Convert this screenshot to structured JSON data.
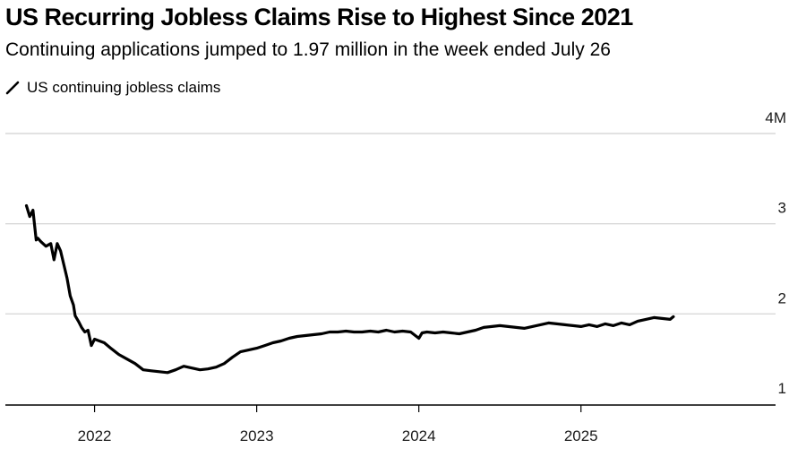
{
  "chart_data": {
    "type": "line",
    "title": "US Recurring Jobless Claims Rise to Highest Since 2021",
    "subtitle": "Continuing applications jumped to 1.97 million in the week ended July 26",
    "xlabel": "",
    "ylabel": "",
    "legend_position": "top-left",
    "grid": true,
    "line_color": "#000000",
    "grid_color": "#d9d9d9",
    "xlim": [
      2021.45,
      2026.2
    ],
    "ylim": [
      1,
      4
    ],
    "y_ticks": [
      {
        "value": 4,
        "label": "4M"
      },
      {
        "value": 3,
        "label": "3"
      },
      {
        "value": 2,
        "label": "2"
      },
      {
        "value": 1,
        "label": "1"
      }
    ],
    "x_ticks": [
      {
        "value": 2022,
        "label": "2022"
      },
      {
        "value": 2023,
        "label": "2023"
      },
      {
        "value": 2024,
        "label": "2024"
      },
      {
        "value": 2025,
        "label": "2025"
      }
    ],
    "series": [
      {
        "name": "US continuing jobless claims",
        "x": [
          2021.58,
          2021.6,
          2021.62,
          2021.64,
          2021.65,
          2021.67,
          2021.7,
          2021.73,
          2021.75,
          2021.77,
          2021.79,
          2021.81,
          2021.83,
          2021.85,
          2021.87,
          2021.88,
          2021.9,
          2021.92,
          2021.94,
          2021.96,
          2021.98,
          2022.0,
          2022.03,
          2022.06,
          2022.1,
          2022.15,
          2022.2,
          2022.25,
          2022.3,
          2022.35,
          2022.4,
          2022.45,
          2022.5,
          2022.55,
          2022.6,
          2022.65,
          2022.7,
          2022.75,
          2022.8,
          2022.85,
          2022.9,
          2022.95,
          2023.0,
          2023.05,
          2023.1,
          2023.15,
          2023.2,
          2023.25,
          2023.3,
          2023.35,
          2023.4,
          2023.45,
          2023.5,
          2023.55,
          2023.6,
          2023.65,
          2023.7,
          2023.75,
          2023.8,
          2023.85,
          2023.9,
          2023.95,
          2024.0,
          2024.02,
          2024.05,
          2024.1,
          2024.15,
          2024.2,
          2024.25,
          2024.3,
          2024.35,
          2024.4,
          2024.45,
          2024.5,
          2024.55,
          2024.6,
          2024.65,
          2024.7,
          2024.75,
          2024.8,
          2024.85,
          2024.9,
          2024.95,
          2025.0,
          2025.05,
          2025.1,
          2025.15,
          2025.2,
          2025.25,
          2025.3,
          2025.35,
          2025.4,
          2025.45,
          2025.5,
          2025.55,
          2025.57
        ],
        "values": [
          3.2,
          3.08,
          3.15,
          2.82,
          2.84,
          2.8,
          2.75,
          2.78,
          2.6,
          2.78,
          2.7,
          2.55,
          2.4,
          2.2,
          2.1,
          1.98,
          1.92,
          1.85,
          1.8,
          1.82,
          1.65,
          1.72,
          1.7,
          1.68,
          1.62,
          1.55,
          1.5,
          1.45,
          1.38,
          1.37,
          1.36,
          1.35,
          1.38,
          1.42,
          1.4,
          1.38,
          1.39,
          1.41,
          1.45,
          1.52,
          1.58,
          1.6,
          1.62,
          1.65,
          1.68,
          1.7,
          1.73,
          1.75,
          1.76,
          1.77,
          1.78,
          1.8,
          1.8,
          1.81,
          1.8,
          1.8,
          1.81,
          1.8,
          1.82,
          1.8,
          1.81,
          1.8,
          1.73,
          1.79,
          1.8,
          1.79,
          1.8,
          1.79,
          1.78,
          1.8,
          1.82,
          1.85,
          1.86,
          1.87,
          1.86,
          1.85,
          1.84,
          1.86,
          1.88,
          1.9,
          1.89,
          1.88,
          1.87,
          1.86,
          1.88,
          1.86,
          1.89,
          1.87,
          1.9,
          1.88,
          1.92,
          1.94,
          1.96,
          1.95,
          1.94,
          1.97
        ]
      }
    ]
  }
}
